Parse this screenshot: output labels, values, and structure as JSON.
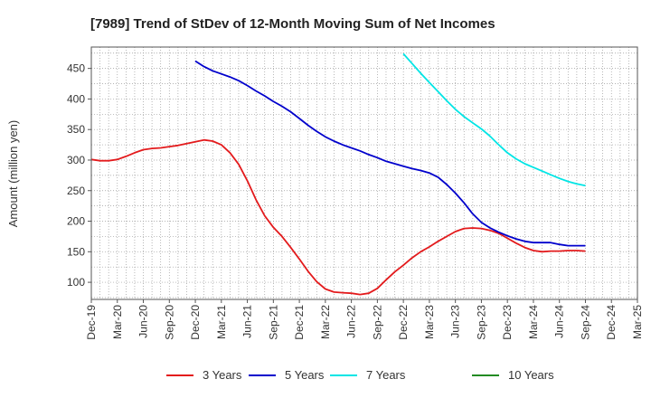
{
  "chart_data": {
    "type": "line",
    "title": "[7989]  Trend of StDev of 12-Month Moving Sum of Net Incomes",
    "ylabel": "Amount (million yen)",
    "xlabel": "",
    "ylim": [
      72,
      485
    ],
    "yticks": [
      100,
      150,
      200,
      250,
      300,
      350,
      400,
      450
    ],
    "grid": true,
    "legend_placement": "bottom",
    "x_tick_labels": [
      "Dec-19",
      "Mar-20",
      "Jun-20",
      "Sep-20",
      "Dec-20",
      "Mar-21",
      "Jun-21",
      "Sep-21",
      "Dec-21",
      "Mar-22",
      "Jun-22",
      "Sep-22",
      "Dec-22",
      "Mar-23",
      "Jun-23",
      "Sep-23",
      "Dec-23",
      "Mar-24",
      "Jun-24",
      "Sep-24",
      "Dec-24",
      "Mar-25"
    ],
    "series": [
      {
        "name": "3 Years",
        "color": "#e31a1c",
        "start_index": 0,
        "values": [
          301,
          299,
          299,
          301,
          306,
          312,
          317,
          319,
          320,
          322,
          324,
          327,
          330,
          333,
          331,
          325,
          312,
          293,
          266,
          235,
          209,
          190,
          175,
          157,
          138,
          118,
          101,
          89,
          84,
          83,
          82,
          80,
          82,
          90,
          104,
          117,
          128,
          140,
          150,
          158,
          167,
          175,
          183,
          188,
          189,
          188,
          185,
          180,
          172,
          164,
          157,
          152,
          150,
          151,
          151,
          152,
          152,
          151
        ]
      },
      {
        "name": "5 Years",
        "color": "#0000cc",
        "start_index": 12,
        "values": [
          462,
          453,
          446,
          441,
          436,
          430,
          422,
          413,
          405,
          396,
          388,
          379,
          368,
          357,
          347,
          338,
          331,
          325,
          320,
          315,
          309,
          304,
          298,
          294,
          290,
          286,
          283,
          279,
          272,
          260,
          246,
          230,
          212,
          198,
          189,
          182,
          176,
          171,
          167,
          165,
          165,
          165,
          162,
          160,
          160,
          160
        ]
      },
      {
        "name": "7 Years",
        "color": "#00e5e5",
        "start_index": 36,
        "values": [
          474,
          458,
          442,
          427,
          412,
          397,
          383,
          371,
          361,
          351,
          339,
          325,
          312,
          302,
          294,
          288,
          282,
          276,
          270,
          265,
          261,
          258
        ]
      },
      {
        "name": "10 Years",
        "color": "#228b22",
        "start_index": 0,
        "values": []
      }
    ]
  }
}
